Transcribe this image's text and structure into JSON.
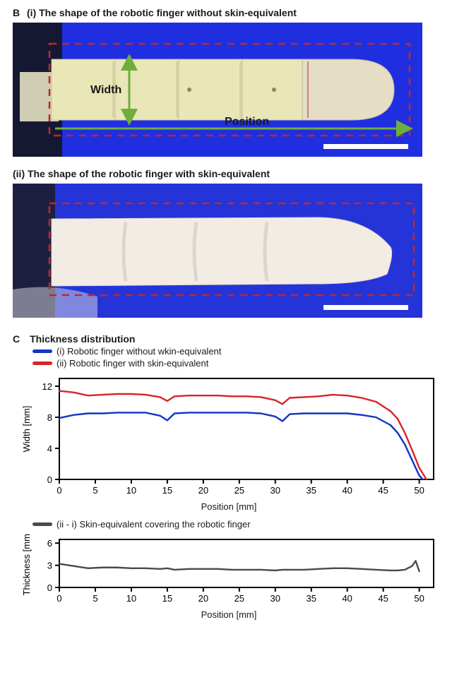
{
  "panelB": {
    "label": "B",
    "sub_i": {
      "title": "(i) The shape of the robotic finger without skin-equivalent",
      "width_label": "Width",
      "position_label": "Position",
      "bg_color": "#1f2fe0",
      "finger_color": "#e9e6b8",
      "dashed_color": "#c0272d",
      "arrow_color": "#6fae3a",
      "scalebar_color": "#ffffff"
    },
    "sub_ii": {
      "title": "(ii) The shape of the robotic finger with skin-equivalent",
      "bg_color": "#2434d8",
      "finger_color": "#f3ece4",
      "dashed_color": "#c0272d",
      "scalebar_color": "#ffffff"
    }
  },
  "panelC": {
    "label": "C",
    "title": "Thickness distribution",
    "legend_i": "(i) Robotic finger without wkin-equivalent",
    "legend_ii": "(ii) Robotic finger with skin-equivalent",
    "legend_diff": "(ii - i) Skin-equivalent covering the robotic finger",
    "color_i": "#1433c4",
    "color_ii": "#d8232a",
    "color_diff": "#4a4a4a",
    "axis_color": "#000000",
    "bg_color": "#ffffff",
    "chart1": {
      "ylabel": "Width [mm]",
      "xlabel": "Position [mm]",
      "xlim": [
        0,
        52
      ],
      "ylim": [
        0,
        13
      ],
      "xtick_step": 5,
      "yticks": [
        0,
        4,
        8,
        12
      ],
      "line_width": 2.4,
      "series_i": {
        "x": [
          0,
          2,
          4,
          6,
          8,
          10,
          12,
          14,
          15,
          16,
          18,
          20,
          22,
          24,
          26,
          28,
          30,
          31,
          32,
          34,
          36,
          38,
          40,
          42,
          44,
          46,
          47,
          48,
          49,
          50,
          50.5
        ],
        "y": [
          7.9,
          8.3,
          8.5,
          8.5,
          8.6,
          8.6,
          8.6,
          8.2,
          7.6,
          8.5,
          8.6,
          8.6,
          8.6,
          8.6,
          8.6,
          8.5,
          8.1,
          7.5,
          8.4,
          8.5,
          8.5,
          8.5,
          8.5,
          8.3,
          8.0,
          7.0,
          6.0,
          4.5,
          2.5,
          0.5,
          0
        ]
      },
      "series_ii": {
        "x": [
          0,
          2,
          4,
          6,
          8,
          10,
          12,
          14,
          15,
          16,
          18,
          20,
          22,
          24,
          26,
          28,
          30,
          31,
          32,
          34,
          36,
          38,
          40,
          42,
          44,
          46,
          47,
          48,
          49,
          50,
          51
        ],
        "y": [
          11.4,
          11.2,
          10.8,
          10.9,
          11.0,
          11.0,
          10.9,
          10.6,
          10.1,
          10.7,
          10.8,
          10.8,
          10.8,
          10.7,
          10.7,
          10.6,
          10.2,
          9.7,
          10.5,
          10.6,
          10.7,
          10.9,
          10.8,
          10.5,
          10.0,
          8.8,
          7.8,
          6.0,
          3.8,
          1.5,
          0
        ]
      }
    },
    "chart2": {
      "ylabel": "Thickness [mm]",
      "xlabel": "Position [mm]",
      "xlim": [
        0,
        52
      ],
      "ylim": [
        0,
        6.5
      ],
      "xtick_step": 5,
      "yticks": [
        0,
        3,
        6
      ],
      "line_width": 2.4,
      "series": {
        "x": [
          0,
          2,
          4,
          6,
          8,
          10,
          12,
          14,
          15,
          16,
          18,
          20,
          22,
          24,
          26,
          28,
          30,
          31,
          32,
          34,
          36,
          38,
          40,
          42,
          44,
          46,
          47,
          48,
          49,
          49.5,
          50
        ],
        "y": [
          3.2,
          2.9,
          2.6,
          2.7,
          2.7,
          2.6,
          2.6,
          2.5,
          2.6,
          2.4,
          2.5,
          2.5,
          2.5,
          2.4,
          2.4,
          2.4,
          2.3,
          2.4,
          2.4,
          2.4,
          2.5,
          2.6,
          2.6,
          2.5,
          2.4,
          2.3,
          2.3,
          2.4,
          2.9,
          3.6,
          2.2
        ]
      }
    }
  }
}
